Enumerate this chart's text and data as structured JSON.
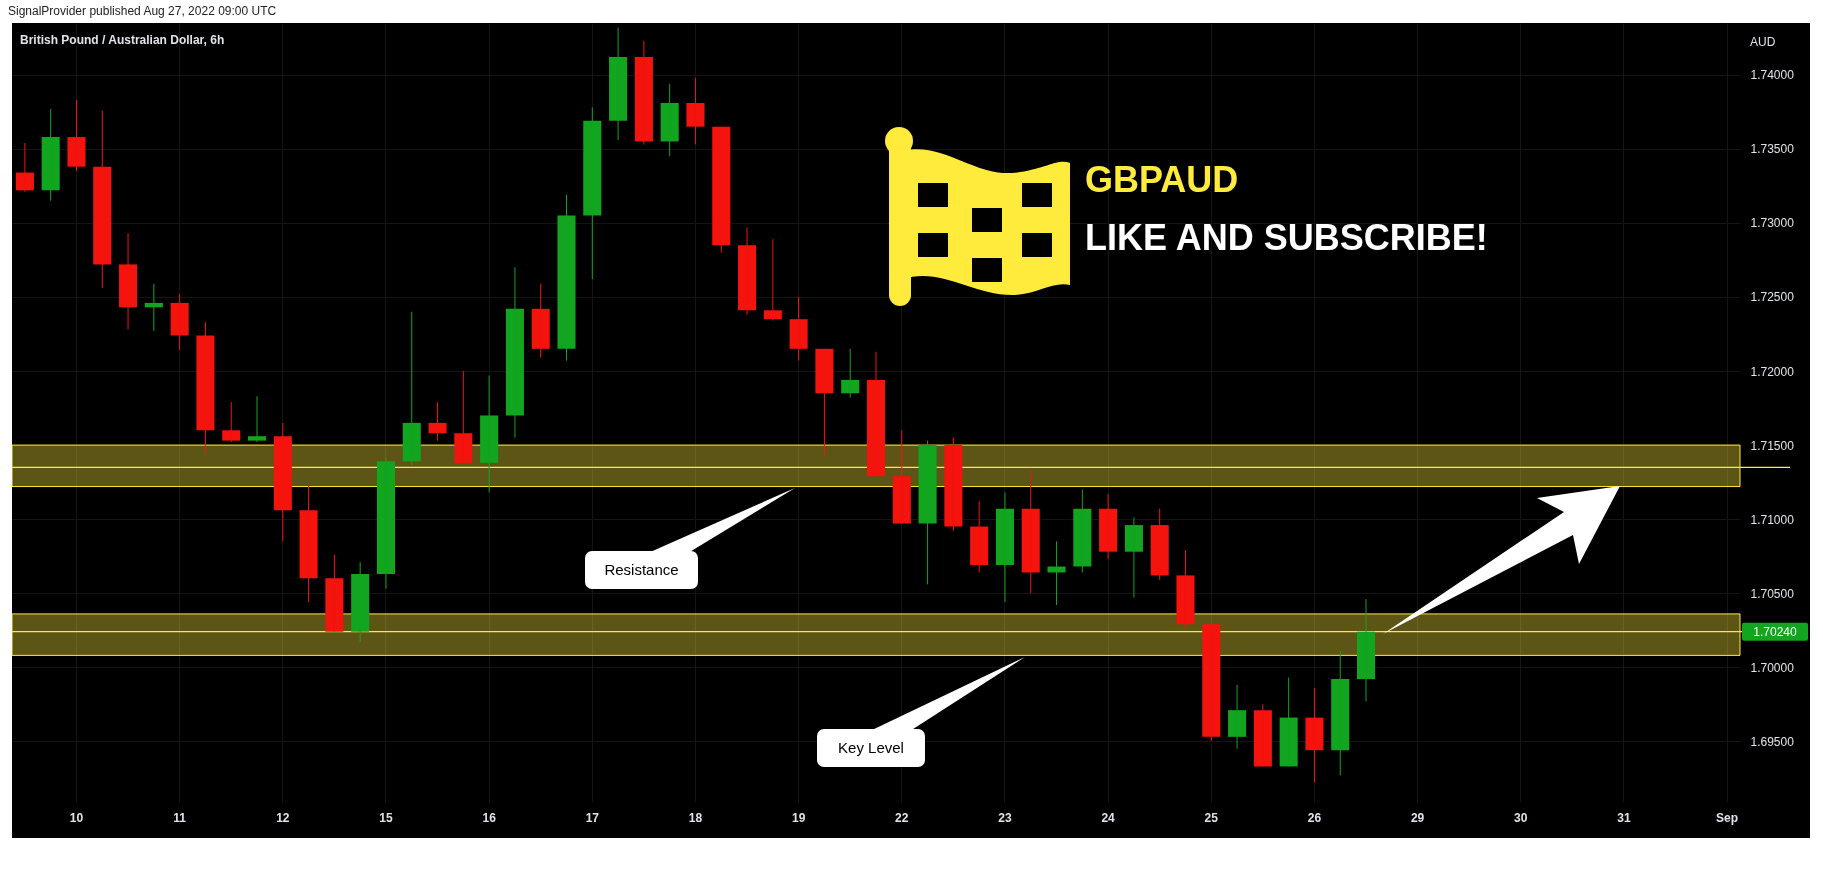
{
  "chart_data": {
    "type": "candlestick",
    "title": "British Pound / Australian Dollar, 6h",
    "ylabel": "AUD",
    "annotations": [
      "SignalProvider published Aug 27, 2022 09:00 UTC",
      "GBPAUD",
      "LIKE AND SUBSCRIBE!"
    ],
    "categories": [
      null,
      null,
      "10",
      null,
      null,
      null,
      "11",
      null,
      null,
      null,
      "12",
      null,
      null,
      null,
      "15",
      null,
      null,
      null,
      "16",
      null,
      null,
      null,
      "17",
      null,
      null,
      null,
      "18",
      null,
      null,
      null,
      "19",
      null,
      null,
      null,
      "22",
      null,
      null,
      null,
      "23",
      null,
      null,
      null,
      "24",
      null,
      null,
      null,
      "25",
      null,
      null,
      null,
      "26",
      null,
      null,
      null,
      "29",
      null,
      null,
      null,
      "30",
      null,
      null,
      null,
      "31",
      null,
      null,
      null,
      "Sep"
    ],
    "ohlc": [
      [
        1.7334,
        1.7354,
        1.7321,
        1.7322
      ],
      [
        1.7322,
        1.7377,
        1.7315,
        1.7358
      ],
      [
        1.7358,
        1.7383,
        1.7335,
        1.7338
      ],
      [
        1.7338,
        1.7376,
        1.7256,
        1.7272
      ],
      [
        1.7272,
        1.7293,
        1.7228,
        1.7243
      ],
      [
        1.7243,
        1.7259,
        1.7227,
        1.7246
      ],
      [
        1.7246,
        1.7252,
        1.7214,
        1.7224
      ],
      [
        1.7224,
        1.7233,
        1.7144,
        1.716
      ],
      [
        1.716,
        1.7179,
        1.7152,
        1.7153
      ],
      [
        1.7153,
        1.7183,
        1.7152,
        1.7156
      ],
      [
        1.7156,
        1.7165,
        1.7085,
        1.7106
      ],
      [
        1.7106,
        1.7123,
        1.7044,
        1.706
      ],
      [
        1.706,
        1.7076,
        1.7024,
        1.7024
      ],
      [
        1.7024,
        1.7071,
        1.7017,
        1.7063
      ],
      [
        1.7063,
        1.7142,
        1.7053,
        1.7139
      ],
      [
        1.7139,
        1.724,
        1.7136,
        1.7165
      ],
      [
        1.7165,
        1.7179,
        1.7153,
        1.7158
      ],
      [
        1.7158,
        1.72,
        1.7138,
        1.7138
      ],
      [
        1.7138,
        1.7197,
        1.7118,
        1.717
      ],
      [
        1.717,
        1.727,
        1.7155,
        1.7242
      ],
      [
        1.7242,
        1.7259,
        1.7209,
        1.7215
      ],
      [
        1.7215,
        1.7319,
        1.7207,
        1.7305
      ],
      [
        1.7305,
        1.7378,
        1.7262,
        1.7369
      ],
      [
        1.7369,
        1.7432,
        1.7356,
        1.7412
      ],
      [
        1.7412,
        1.7423,
        1.7353,
        1.7355
      ],
      [
        1.7355,
        1.7394,
        1.7345,
        1.7381
      ],
      [
        1.7381,
        1.7398,
        1.7353,
        1.7365
      ],
      [
        1.7365,
        1.7365,
        1.728,
        1.7285
      ],
      [
        1.7285,
        1.7297,
        1.7238,
        1.7241
      ],
      [
        1.7241,
        1.7289,
        1.7234,
        1.7235
      ],
      [
        1.7235,
        1.725,
        1.7207,
        1.7215
      ],
      [
        1.7215,
        1.7215,
        1.7143,
        1.7185
      ],
      [
        1.7185,
        1.7215,
        1.7182,
        1.7194
      ],
      [
        1.7194,
        1.7213,
        1.7129,
        1.7129
      ],
      [
        1.7129,
        1.716,
        1.7097,
        1.7097
      ],
      [
        1.7097,
        1.7153,
        1.7056,
        1.715
      ],
      [
        1.715,
        1.7155,
        1.7092,
        1.7095
      ],
      [
        1.7095,
        1.7112,
        1.7064,
        1.7069
      ],
      [
        1.7069,
        1.7118,
        1.7044,
        1.7107
      ],
      [
        1.7107,
        1.7134,
        1.705,
        1.7064
      ],
      [
        1.7064,
        1.7085,
        1.7042,
        1.7068
      ],
      [
        1.7068,
        1.712,
        1.7064,
        1.7107
      ],
      [
        1.7107,
        1.7117,
        1.7073,
        1.7078
      ],
      [
        1.7078,
        1.7101,
        1.7047,
        1.7096
      ],
      [
        1.7096,
        1.7107,
        1.7059,
        1.7062
      ],
      [
        1.7062,
        1.7079,
        1.7026,
        1.7029
      ],
      [
        1.7029,
        1.7029,
        1.695,
        1.6953
      ],
      [
        1.6953,
        1.6988,
        1.6945,
        1.6971
      ],
      [
        1.6971,
        1.6975,
        1.6933,
        1.6933
      ],
      [
        1.6933,
        1.6993,
        1.6933,
        1.6966
      ],
      [
        1.6966,
        1.6986,
        1.6922,
        1.6944
      ],
      [
        1.6944,
        1.7011,
        1.6927,
        1.6992
      ],
      [
        1.6992,
        1.7046,
        1.6977,
        1.7024
      ],
      null,
      null,
      null,
      null,
      null,
      null,
      null,
      null,
      null,
      null,
      null,
      null,
      null,
      null
    ],
    "colors": [
      "#f4140d",
      "#12a51f",
      "#f4140d",
      "#f4140d",
      "#f4140d",
      "#12a51f",
      "#f4140d",
      "#f4140d",
      "#f4140d",
      "#12a51f",
      "#f4140d",
      "#f4140d",
      "#f4140d",
      "#12a51f",
      "#12a51f",
      "#12a51f",
      "#f4140d",
      "#f4140d",
      "#12a51f",
      "#12a51f",
      "#f4140d",
      "#12a51f",
      "#12a51f",
      "#12a51f",
      "#f4140d",
      "#12a51f",
      "#f4140d",
      "#f4140d",
      "#f4140d",
      "#f4140d",
      "#f4140d",
      "#f4140d",
      "#12a51f",
      "#f4140d",
      "#f4140d",
      "#12a51f",
      "#f4140d",
      "#f4140d",
      "#12a51f",
      "#f4140d",
      "#12a51f",
      "#12a51f",
      "#f4140d",
      "#12a51f",
      "#f4140d",
      "#f4140d",
      "#f4140d",
      "#12a51f",
      "#f4140d",
      "#12a51f",
      "#f4140d",
      "#12a51f",
      "#12a51f",
      null,
      null,
      null,
      null,
      null,
      null,
      null,
      null,
      null,
      null,
      null,
      null,
      null,
      null
    ],
    "ylim": [
      1.6909,
      1.7435
    ],
    "yticks": [
      {
        "value": 1.695,
        "label": "1.69500"
      },
      {
        "value": 1.7,
        "label": "1.70000"
      },
      {
        "value": 1.705,
        "label": "1.70500"
      },
      {
        "value": 1.71,
        "label": "1.71000"
      },
      {
        "value": 1.715,
        "label": "1.71500"
      },
      {
        "value": 1.72,
        "label": "1.72000"
      },
      {
        "value": 1.725,
        "label": "1.72500"
      },
      {
        "value": 1.73,
        "label": "1.73000"
      },
      {
        "value": 1.735,
        "label": "1.73500"
      },
      {
        "value": 1.74,
        "label": "1.74000"
      }
    ],
    "grid": true,
    "ref_lines": [
      {
        "axis": "y",
        "value": 1.7135,
        "color": "#ffeb3b"
      },
      {
        "axis": "y",
        "value": 1.7024,
        "label": "1.70240",
        "color": "#ffeb3b"
      }
    ],
    "bands": [
      {
        "axis": "y",
        "from": 1.7122,
        "to": 1.715,
        "label": "Resistance",
        "color": "#ffeb3b"
      },
      {
        "axis": "y",
        "from": 1.7008,
        "to": 1.7036,
        "label": "Key Level",
        "color": "#ffeb3b"
      }
    ]
  }
}
